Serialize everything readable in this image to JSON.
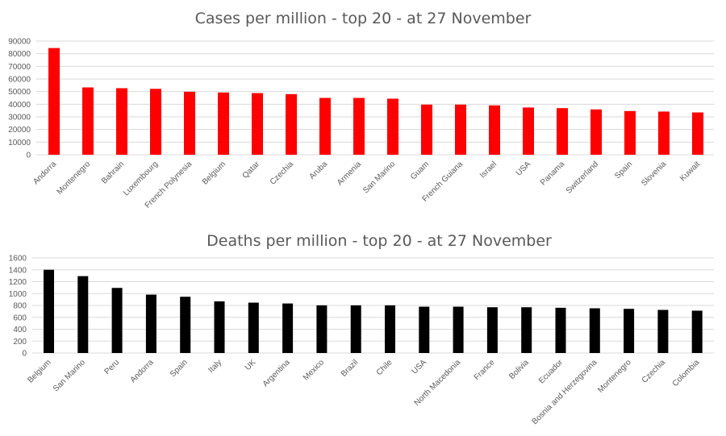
{
  "chart_data": [
    {
      "type": "bar",
      "title": "Cases per million - top 20 - at 27 November",
      "xlabel": "",
      "ylabel": "",
      "ylim": [
        0,
        90000
      ],
      "yticks": [
        0,
        10000,
        20000,
        30000,
        40000,
        50000,
        60000,
        70000,
        80000,
        90000
      ],
      "grid": true,
      "color": "#ff0000",
      "categories": [
        "Andorra",
        "Montenegro",
        "Bahrain",
        "Luxembourg",
        "French Polynesia",
        "Belgium",
        "Qatar",
        "Czechia",
        "Aruba",
        "Armenia",
        "San Marino",
        "Guam",
        "French Guiana",
        "Israel",
        "USA",
        "Panama",
        "Switzerland",
        "Spain",
        "Slovenia",
        "Kuwait"
      ],
      "values": [
        84500,
        53300,
        52700,
        52200,
        49900,
        49300,
        48800,
        48000,
        45000,
        45000,
        44400,
        39700,
        39700,
        39100,
        37400,
        36900,
        35900,
        34600,
        34200,
        33500
      ]
    },
    {
      "type": "bar",
      "title": "Deaths per million - top 20 - at 27 November",
      "xlabel": "",
      "ylabel": "",
      "ylim": [
        0,
        1600
      ],
      "yticks": [
        0,
        200,
        400,
        600,
        800,
        1000,
        1200,
        1400,
        1600
      ],
      "grid": true,
      "color": "#000000",
      "categories": [
        "Belgium",
        "San Marino",
        "Peru",
        "Andorra",
        "Spain",
        "Italy",
        "UK",
        "Argentina",
        "Mexico",
        "Brazil",
        "Chile",
        "USA",
        "North Macedonia",
        "France",
        "Bolivia",
        "Ecuador",
        "Bosnia and Herzegovina",
        "Montenegro",
        "Czechia",
        "Colombia"
      ],
      "values": [
        1400,
        1293,
        1095,
        982,
        946,
        869,
        847,
        833,
        802,
        802,
        802,
        779,
        779,
        770,
        770,
        761,
        752,
        743,
        725,
        712
      ]
    }
  ]
}
